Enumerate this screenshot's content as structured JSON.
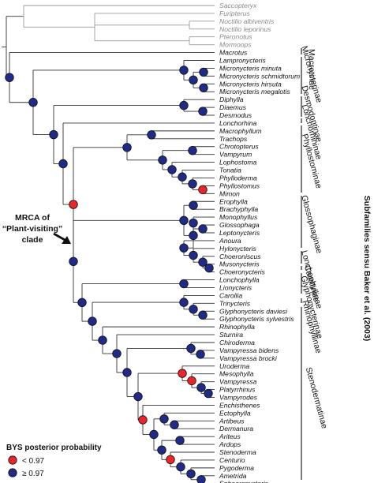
{
  "taxa": [
    {
      "name": "Saccopteryx",
      "grey": true
    },
    {
      "name": "Furipterus",
      "grey": true
    },
    {
      "name": "Noctilio albiventris",
      "grey": true
    },
    {
      "name": "Noctilio leporinus",
      "grey": true
    },
    {
      "name": "Pteronotus",
      "grey": true
    },
    {
      "name": "Mormoops",
      "grey": true
    },
    {
      "name": "Macrotus"
    },
    {
      "name": "Lampronycteris"
    },
    {
      "name": "Micronycteris minuta"
    },
    {
      "name": "Micronycteris schmidtorum"
    },
    {
      "name": "Micronycteris hirsuta"
    },
    {
      "name": "Micronycteris megalotis"
    },
    {
      "name": "Diphylla"
    },
    {
      "name": "Diaemus"
    },
    {
      "name": "Desmodus"
    },
    {
      "name": "Lonchorhina"
    },
    {
      "name": "Macrophyllum"
    },
    {
      "name": "Trachops"
    },
    {
      "name": "Chrotopterus"
    },
    {
      "name": "Vampyrum"
    },
    {
      "name": "Lophostoma"
    },
    {
      "name": "Tonatia"
    },
    {
      "name": "Phylloderma"
    },
    {
      "name": "Phyllostomus"
    },
    {
      "name": "Mimon"
    },
    {
      "name": "Erophylla"
    },
    {
      "name": "Brachyphylla"
    },
    {
      "name": "Monophyllus"
    },
    {
      "name": "Glossophaga"
    },
    {
      "name": "Leptonycteris"
    },
    {
      "name": "Anoura"
    },
    {
      "name": "Hylonycteris"
    },
    {
      "name": "Choeroniscus"
    },
    {
      "name": "Musonycteris"
    },
    {
      "name": "Choeronycteris"
    },
    {
      "name": "Lonchophylla"
    },
    {
      "name": "Lionycteris"
    },
    {
      "name": "Carollia"
    },
    {
      "name": "Trinycteris"
    },
    {
      "name": "Glyphonycteris daviesi"
    },
    {
      "name": "Glyphonycteris sylvestris"
    },
    {
      "name": "Rhinophylla"
    },
    {
      "name": "Sturnira"
    },
    {
      "name": "Chiroderma"
    },
    {
      "name": "Vampyressa bidens"
    },
    {
      "name": "Vampyressa brocki"
    },
    {
      "name": "Uroderma"
    },
    {
      "name": "Mesophylla"
    },
    {
      "name": "Vampyressa"
    },
    {
      "name": "Platyrrhinus"
    },
    {
      "name": "Vampyrodes"
    },
    {
      "name": "Enchisthenes"
    },
    {
      "name": "Ectophylla"
    },
    {
      "name": "Artibeus"
    },
    {
      "name": "Dermanura"
    },
    {
      "name": "Ariteus"
    },
    {
      "name": "Ardops"
    },
    {
      "name": "Stenoderma"
    },
    {
      "name": "Centurio"
    },
    {
      "name": "Pygoderma"
    },
    {
      "name": "Ametrida"
    },
    {
      "name": "Sphaeronycteris"
    }
  ],
  "subfamilies": [
    {
      "label": "Macrotinae"
    },
    {
      "label": "Micronycterinae"
    },
    {
      "label": "Desmodontinae"
    },
    {
      "label": "Lonchorhininae"
    },
    {
      "label": "Phyllostominae"
    },
    {
      "label": "Glossophaginae"
    },
    {
      "label": "Lonchophyllinae"
    },
    {
      "label": "Carollinae"
    },
    {
      "label": "Glyphonycterinae"
    },
    {
      "label": "Rhinophyllinae"
    },
    {
      "label": "Stenodermatinae"
    }
  ],
  "vertical_title": "Subfamilies sensu Baker et al. (2003)",
  "mrca_label": [
    "MRCA of",
    "“Plant-visiting”",
    "clade"
  ],
  "legend": {
    "title": "BYS posterior probability",
    "items": [
      {
        "label": "< 0.97",
        "color": "#e8262b"
      },
      {
        "label": "≥ 0.97",
        "color": "#1f2b87"
      }
    ]
  },
  "colors": {
    "low_support": "#e8262b",
    "high_support": "#1f2b87"
  }
}
